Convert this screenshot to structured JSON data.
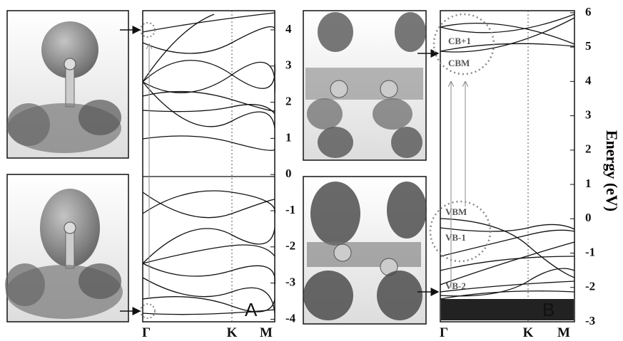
{
  "panel_a": {
    "label": "A",
    "ylim": [
      -4.07,
      4.53
    ],
    "yticks": [
      -4,
      -3,
      -2,
      -1,
      0,
      1,
      2,
      3,
      4
    ],
    "kpoints": [
      "Γ",
      "K",
      "M"
    ]
  },
  "panel_b": {
    "label": "B",
    "ylim": [
      -3.0,
      6.06
    ],
    "yticks": [
      -3,
      -2,
      -1,
      0,
      1,
      2,
      3,
      4,
      5,
      6
    ],
    "kpoints": [
      "Γ",
      "K",
      "M"
    ],
    "state_labels": [
      "CB+1",
      "CBM",
      "VBM",
      "VB-1",
      "VB-2"
    ],
    "axis_title": "Energy (eV)"
  }
}
